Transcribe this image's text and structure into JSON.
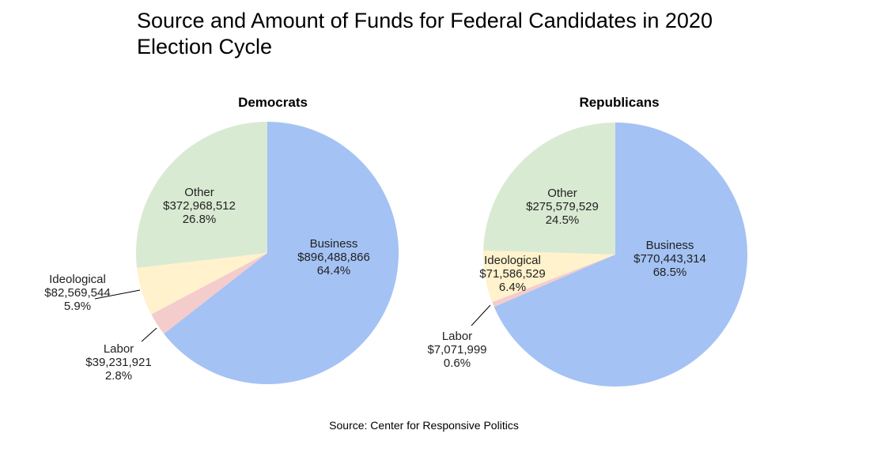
{
  "chart_data": [
    {
      "type": "pie",
      "title": "Democrats",
      "start_angle": "12 o'clock",
      "direction": "clockwise",
      "slices": [
        {
          "label": "Business",
          "amount": "$896,488,866",
          "value": 896488866,
          "percent": "64.4%",
          "color": "#a4c2f4"
        },
        {
          "label": "Labor",
          "amount": "$39,231,921",
          "value": 39231921,
          "percent": "2.8%",
          "color": "#f4cccc"
        },
        {
          "label": "Ideological",
          "amount": "$82,569,544",
          "value": 82569544,
          "percent": "5.9%",
          "color": "#fff2cc"
        },
        {
          "label": "Other",
          "amount": "$372,968,512",
          "value": 372968512,
          "percent": "26.8%",
          "color": "#d9ead3"
        }
      ]
    },
    {
      "type": "pie",
      "title": "Republicans",
      "start_angle": "12 o'clock",
      "direction": "clockwise",
      "slices": [
        {
          "label": "Business",
          "amount": "$770,443,314",
          "value": 770443314,
          "percent": "68.5%",
          "color": "#a4c2f4"
        },
        {
          "label": "Labor",
          "amount": "$7,071,999",
          "value": 7071999,
          "percent": "0.6%",
          "color": "#f4cccc"
        },
        {
          "label": "Ideological",
          "amount": "$71,586,529",
          "value": 71586529,
          "percent": "6.4%",
          "color": "#fff2cc"
        },
        {
          "label": "Other",
          "amount": "$275,579,529",
          "value": 275579529,
          "percent": "24.5%",
          "color": "#d9ead3"
        }
      ]
    }
  ],
  "title": "Source and Amount of Funds for Federal Candidates in 2020 Election Cycle",
  "source": "Source: Center for Responsive Politics"
}
